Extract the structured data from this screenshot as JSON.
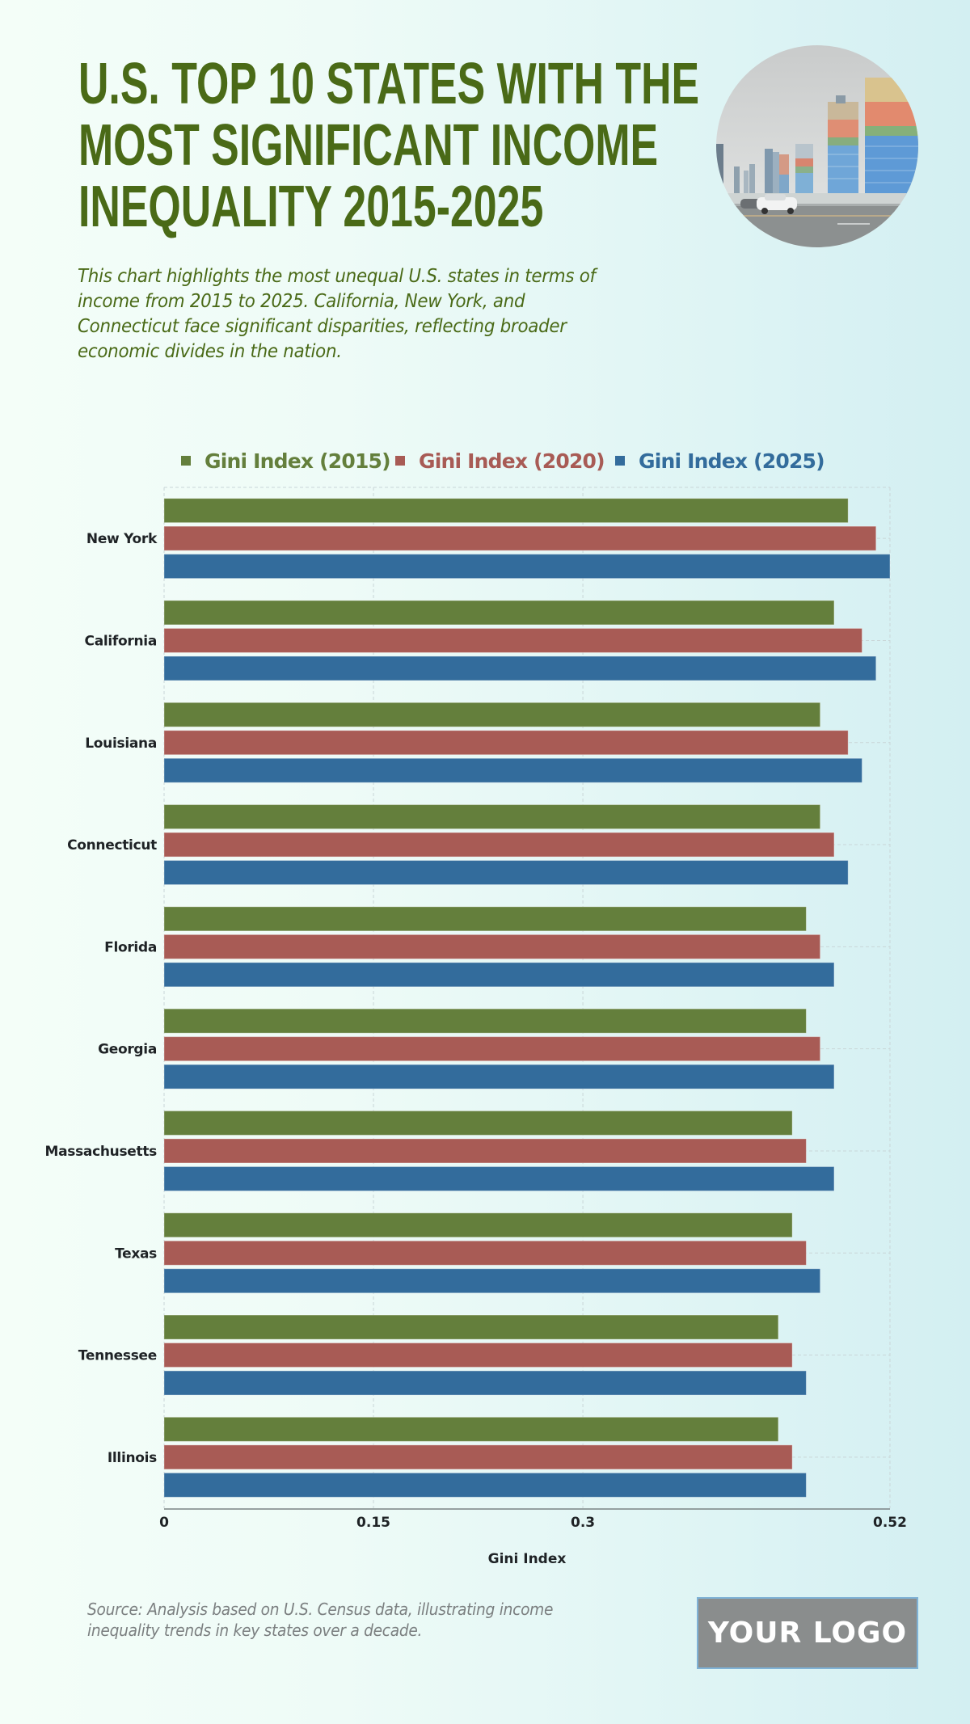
{
  "header": {
    "title_lines": [
      "U.S. TOP 10 STATES WITH THE",
      "MOST SIGNIFICANT INCOME",
      "INEQUALITY 2015-2025"
    ],
    "subtitle_lines": [
      "This chart highlights the most unequal U.S. states in terms of",
      "income from 2015 to 2025. California, New York, and",
      "Connecticut face significant disparities, reflecting broader",
      "economic divides in the nation."
    ],
    "photo_icon": "city-skyline-photo"
  },
  "footer": {
    "source_lines": [
      "Source: Analysis based on U.S. Census data, illustrating income",
      "inequality trends in key states over a decade."
    ],
    "logo_text": "YOUR LOGO"
  },
  "colors": {
    "title": "#4a6a17",
    "series_2015": "#647f3c",
    "series_2020": "#a85b55",
    "series_2025": "#336c9c"
  },
  "chart_data": {
    "type": "bar",
    "orientation": "horizontal",
    "title": "U.S. Top 10 States With The Most Significant Income Inequality 2015-2025",
    "xlabel": "Gini Index",
    "ylabel": "",
    "xlim": [
      0,
      0.52
    ],
    "x_ticks": [
      0,
      0.15,
      0.3,
      0.52
    ],
    "x_tick_labels": [
      "0",
      "0.15",
      "0.3",
      "0.52"
    ],
    "grid": true,
    "legend_position": "top-center",
    "categories": [
      "New York",
      "California",
      "Louisiana",
      "Connecticut",
      "Florida",
      "Georgia",
      "Massachusetts",
      "Texas",
      "Tennessee",
      "Illinois"
    ],
    "series": [
      {
        "name": "Gini Index (2015)",
        "color": "#647f3c",
        "values": [
          0.49,
          0.48,
          0.47,
          0.47,
          0.46,
          0.46,
          0.45,
          0.45,
          0.44,
          0.44
        ]
      },
      {
        "name": "Gini Index (2020)",
        "color": "#a85b55",
        "values": [
          0.51,
          0.5,
          0.49,
          0.48,
          0.47,
          0.47,
          0.46,
          0.46,
          0.45,
          0.45
        ]
      },
      {
        "name": "Gini Index (2025)",
        "color": "#336c9c",
        "values": [
          0.52,
          0.51,
          0.5,
          0.49,
          0.48,
          0.48,
          0.48,
          0.47,
          0.46,
          0.46
        ]
      }
    ]
  }
}
